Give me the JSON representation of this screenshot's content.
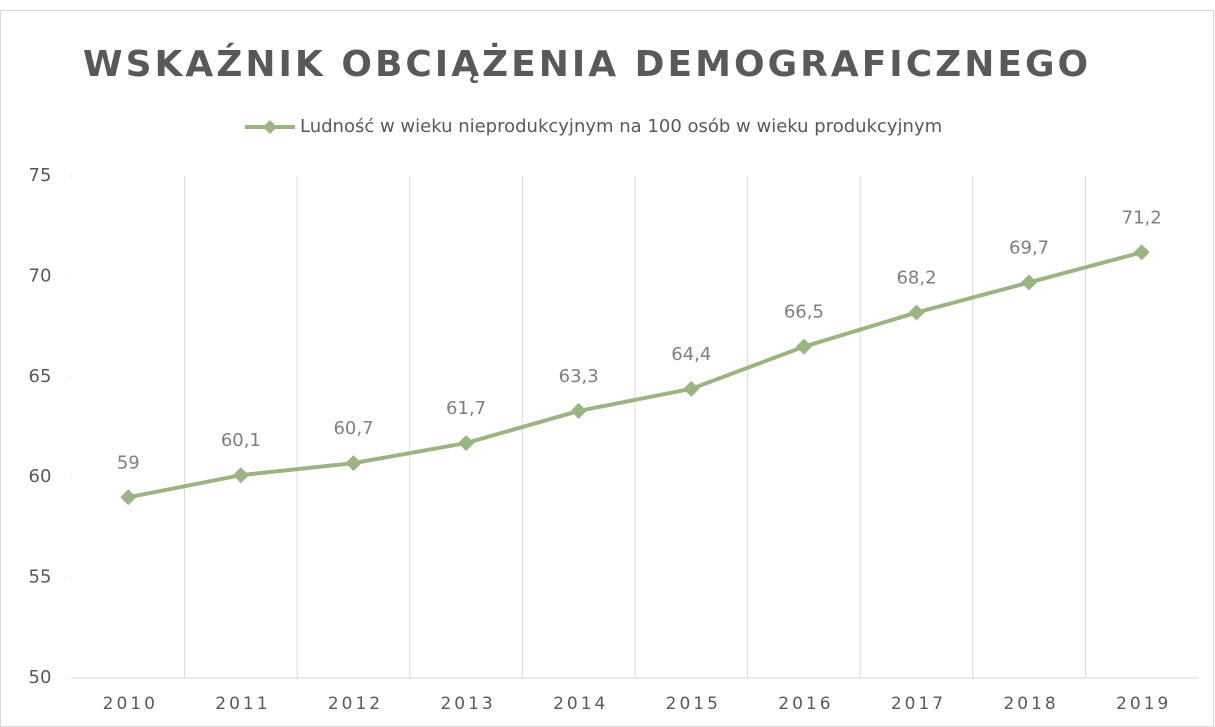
{
  "chart_data": {
    "type": "line",
    "title": "WSKAŹNIK OBCIĄŻENIA DEMOGRAFICZNEGO",
    "categories": [
      "2010",
      "2011",
      "2012",
      "2013",
      "2014",
      "2015",
      "2016",
      "2017",
      "2018",
      "2019"
    ],
    "series": [
      {
        "name": "Ludność w wieku nieprodukcyjnym na 100 osób w wieku produkcyjnym",
        "color": "#9cb384",
        "values": [
          59,
          60.1,
          60.7,
          61.7,
          63.3,
          64.4,
          66.5,
          68.2,
          69.7,
          71.2
        ],
        "value_labels": [
          "59",
          "60,1",
          "60,7",
          "61,7",
          "63,3",
          "64,4",
          "66,5",
          "68,2",
          "69,7",
          "71,2"
        ]
      }
    ],
    "ylim": [
      50,
      75
    ],
    "yticks": [
      50,
      55,
      60,
      65,
      70,
      75
    ],
    "grid": true,
    "legend": "top"
  }
}
